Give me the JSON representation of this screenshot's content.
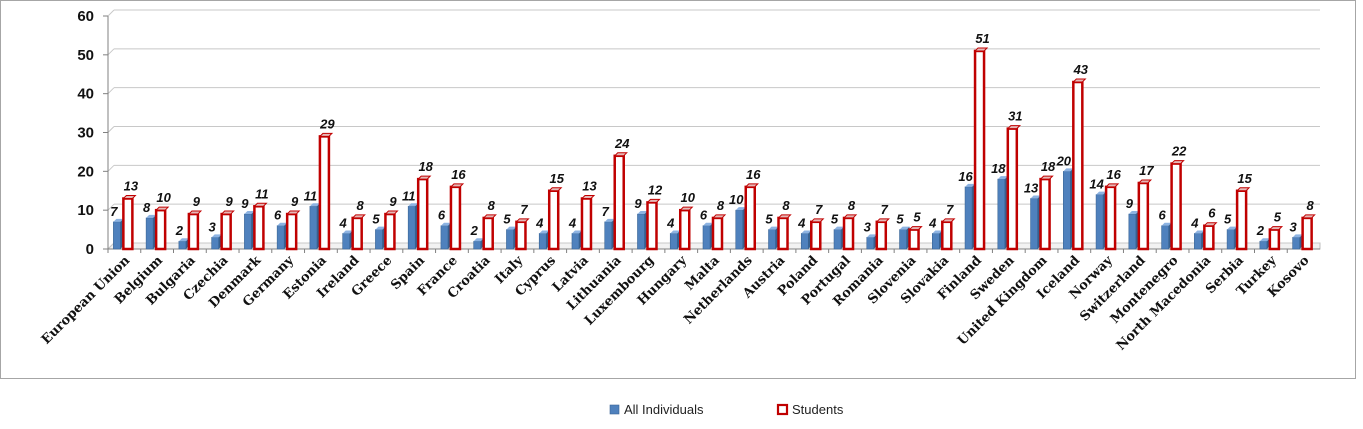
{
  "chart_data": {
    "type": "bar",
    "categories": [
      "European Union",
      "Belgium",
      "Bulgaria",
      "Czechia",
      "Denmark",
      "Germany",
      "Estonia",
      "Ireland",
      "Greece",
      "Spain",
      "France",
      "Croatia",
      "Italy",
      "Cyprus",
      "Latvia",
      "Lithuania",
      "Luxembourg",
      "Hungary",
      "Malta",
      "Netherlands",
      "Austria",
      "Poland",
      "Portugal",
      "Romania",
      "Slovenia",
      "Slovakia",
      "Finland",
      "Sweden",
      "United Kingdom",
      "Iceland",
      "Norway",
      "Switzerland",
      "Montenegro",
      "North Macedonia",
      "Serbia",
      "Turkey",
      "Kosovo"
    ],
    "series": [
      {
        "name": "All Individuals",
        "color": "#4f81bd",
        "values": [
          7,
          8,
          2,
          3,
          9,
          6,
          11,
          4,
          5,
          11,
          6,
          2,
          5,
          4,
          4,
          7,
          9,
          4,
          6,
          10,
          5,
          4,
          5,
          3,
          5,
          4,
          16,
          18,
          13,
          20,
          14,
          9,
          6,
          4,
          5,
          2,
          3
        ]
      },
      {
        "name": "Students",
        "color": "#c00000",
        "values": [
          13,
          10,
          9,
          9,
          11,
          9,
          29,
          8,
          9,
          18,
          16,
          8,
          7,
          15,
          13,
          24,
          12,
          10,
          8,
          16,
          8,
          7,
          8,
          7,
          5,
          7,
          51,
          31,
          18,
          43,
          16,
          17,
          22,
          6,
          15,
          5,
          8
        ]
      }
    ],
    "yticks": [
      0,
      10,
      20,
      30,
      40,
      50,
      60
    ],
    "ylim": [
      0,
      60
    ],
    "grid": true,
    "legend_position": "bottom",
    "title": "",
    "xlabel": "",
    "ylabel": ""
  }
}
